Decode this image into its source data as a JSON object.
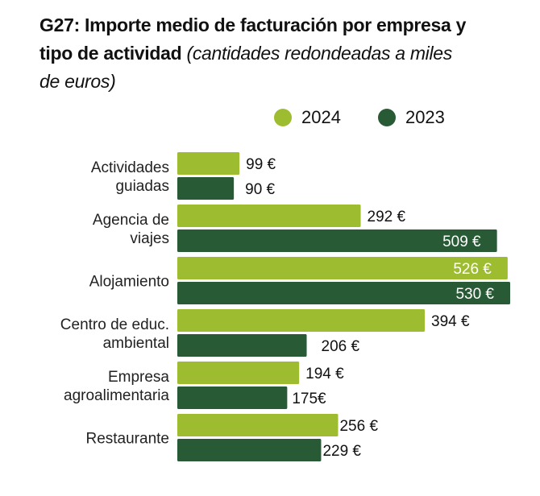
{
  "chart_data": {
    "type": "bar",
    "orientation": "horizontal",
    "title_bold": "G27: Importe medio de facturación por empresa y tipo de actividad",
    "title_italic": "(cantidades redondeadas a miles de euros)",
    "title_line1": "G27: Importe medio de facturación por empresa y",
    "title_line2_bold": "tipo de actividad",
    "title_line2_italic": "(cantidades redondeadas a miles",
    "title_line3_italic": "de euros)",
    "xlabel": "",
    "ylabel": "",
    "xlim": [
      0,
      530
    ],
    "grid": false,
    "legend_position": "top-right",
    "categories": [
      [
        "Actividades",
        "guiadas"
      ],
      [
        "Agencia de",
        "viajes"
      ],
      [
        "Alojamiento"
      ],
      [
        "Centro de educ.",
        "ambiental"
      ],
      [
        "Empresa",
        "agroalimentaria"
      ],
      [
        "Restaurante"
      ]
    ],
    "series": [
      {
        "name": "2024",
        "color": "#9ebc30",
        "values": [
          99,
          292,
          526,
          394,
          194,
          256
        ],
        "labels": [
          "99 €",
          "292 €",
          "526 €",
          "394 €",
          "194 €",
          "256 €"
        ]
      },
      {
        "name": "2023",
        "color": "#285b35",
        "values": [
          90,
          509,
          530,
          206,
          175,
          229
        ],
        "labels": [
          "90 €",
          "509 €",
          "530 €",
          "206 €",
          "175€",
          "229 €"
        ]
      }
    ]
  }
}
